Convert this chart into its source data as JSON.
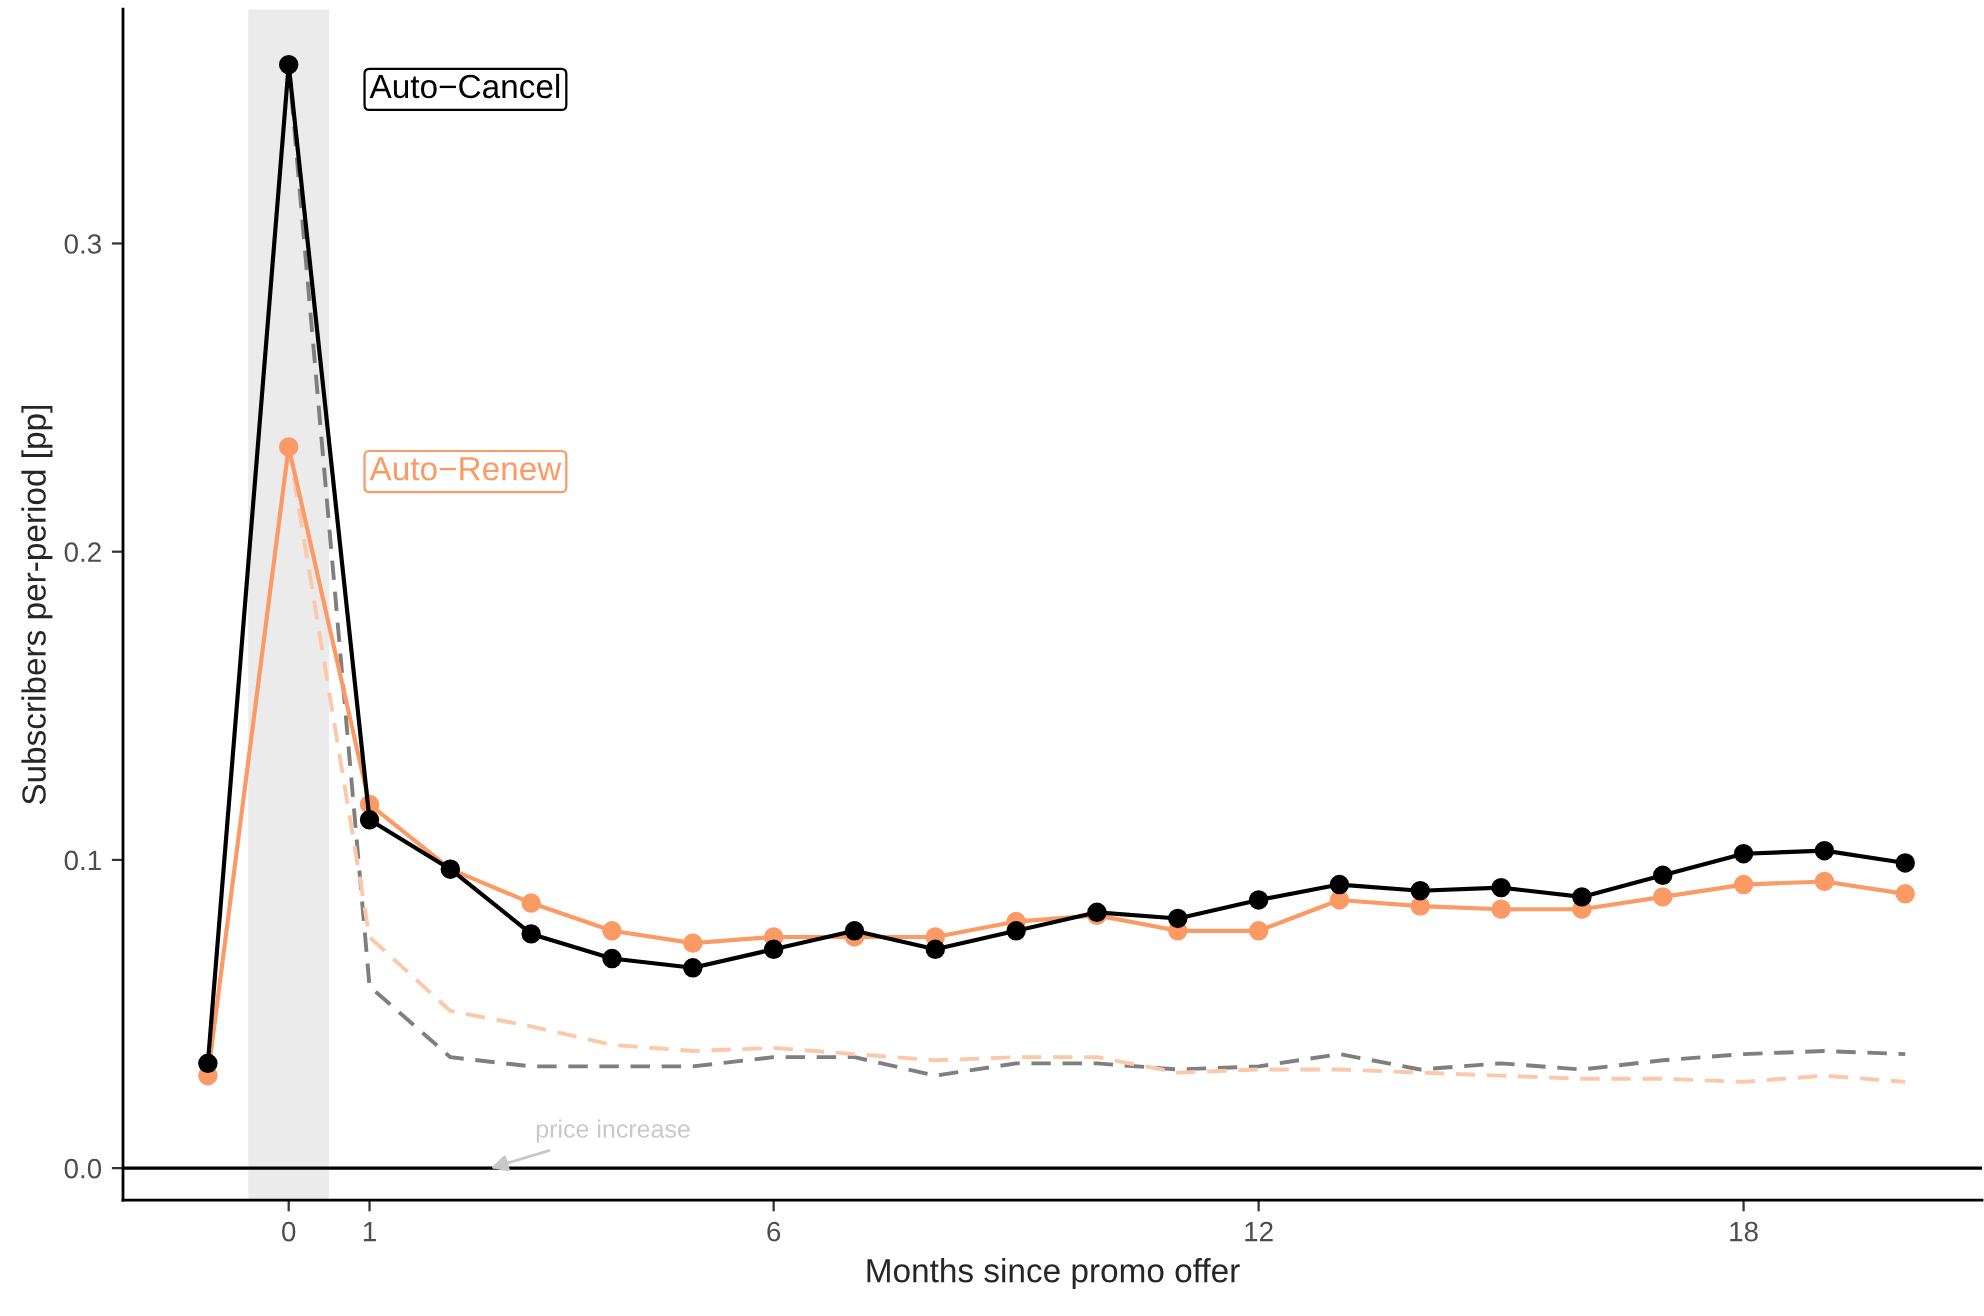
{
  "chart_data": {
    "type": "line",
    "xlabel": "Months since promo offer",
    "ylabel": "Subscribers per-period [pp]",
    "x": [
      -1,
      0,
      1,
      2,
      3,
      4,
      5,
      6,
      7,
      8,
      9,
      10,
      11,
      12,
      13,
      14,
      15,
      16,
      17,
      18,
      19,
      20
    ],
    "series": [
      {
        "name": "Auto−Cancel",
        "color": "#000000",
        "marker": "circle",
        "line_style": "solid",
        "values": [
          0.034,
          0.358,
          0.113,
          0.097,
          0.076,
          0.068,
          0.065,
          0.071,
          0.077,
          0.071,
          0.077,
          0.083,
          0.081,
          0.087,
          0.092,
          0.09,
          0.091,
          0.088,
          0.095,
          0.102,
          0.103,
          0.099
        ]
      },
      {
        "name": "Auto−Renew",
        "color": "#fc9a66",
        "marker": "circle",
        "line_style": "solid",
        "values": [
          0.03,
          0.234,
          0.118,
          0.097,
          0.086,
          0.077,
          0.073,
          0.075,
          0.075,
          0.075,
          0.08,
          0.082,
          0.077,
          0.077,
          0.087,
          0.085,
          0.084,
          0.084,
          0.088,
          0.092,
          0.093,
          0.089
        ]
      },
      {
        "color": "#7f7f7f",
        "marker": "none",
        "line_style": "dashed",
        "values": [
          null,
          0.358,
          0.059,
          0.036,
          0.033,
          0.033,
          0.033,
          0.036,
          0.036,
          0.03,
          0.034,
          0.034,
          0.032,
          0.033,
          0.037,
          0.032,
          0.034,
          0.032,
          0.035,
          0.037,
          0.038,
          0.037
        ]
      },
      {
        "color": "#fdc8aa",
        "marker": "none",
        "line_style": "dashed",
        "values": [
          null,
          0.234,
          0.075,
          0.051,
          0.046,
          0.04,
          0.038,
          0.039,
          0.037,
          0.035,
          0.036,
          0.036,
          0.031,
          0.032,
          0.032,
          0.031,
          0.03,
          0.029,
          0.029,
          0.028,
          0.03,
          0.028
        ]
      }
    ],
    "xlim": [
      -2.05,
      20.95
    ],
    "ylim": [
      -0.0104,
      0.376
    ],
    "xticks": [
      0,
      1,
      6,
      12,
      18
    ],
    "yticks": [
      {
        "value": 0,
        "label": "0.0"
      },
      0.1,
      0.2,
      0.3
    ],
    "ref_lines": [
      {
        "axis": "y",
        "value": 0,
        "color": "#000000",
        "line_style": "solid"
      }
    ],
    "bands": [
      {
        "axis": "x",
        "from": -0.5,
        "to": 0.5,
        "color": "#ebebeb"
      }
    ],
    "annotations": [
      {
        "text": "price increase",
        "x": 2.5,
        "y": 0
      }
    ],
    "grid": false,
    "legend": false
  }
}
